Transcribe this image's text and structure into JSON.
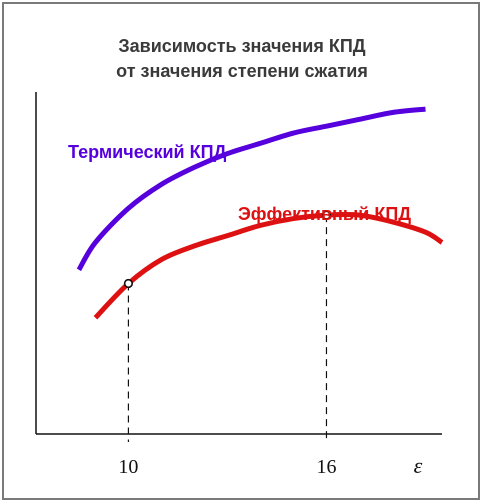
{
  "chart_data": {
    "type": "line",
    "title_line1": "Зависимость значения КПД",
    "title_line2": "от значения степени сжатия",
    "xlabel": "ε",
    "ylabel": "",
    "x_ticks": [
      "10",
      "16"
    ],
    "xlim": [
      7.2,
      19.5
    ],
    "ylim": [
      0,
      1
    ],
    "grid": false,
    "series": [
      {
        "name": "Термический КПД",
        "color": "#5500dd",
        "x": [
          8.5,
          9.0,
          10.0,
          11.0,
          12.0,
          13.0,
          14.0,
          15.0,
          16.0,
          17.0,
          18.0,
          19.0
        ],
        "y": [
          0.48,
          0.56,
          0.66,
          0.73,
          0.78,
          0.82,
          0.85,
          0.88,
          0.9,
          0.92,
          0.94,
          0.95
        ]
      },
      {
        "name": "Эффективный КПД",
        "color": "#dd1111",
        "x": [
          9.0,
          10.0,
          11.0,
          12.0,
          13.0,
          14.0,
          15.0,
          16.0,
          17.0,
          18.0,
          19.0,
          19.5
        ],
        "y": [
          0.34,
          0.44,
          0.51,
          0.55,
          0.58,
          0.61,
          0.63,
          0.64,
          0.64,
          0.62,
          0.59,
          0.56
        ]
      }
    ],
    "markers": [
      {
        "series": "Эффективный КПД",
        "x": 10.0,
        "y": 0.44
      },
      {
        "series": "Эффективный КПД",
        "x": 16.0,
        "y": 0.64
      }
    ]
  }
}
